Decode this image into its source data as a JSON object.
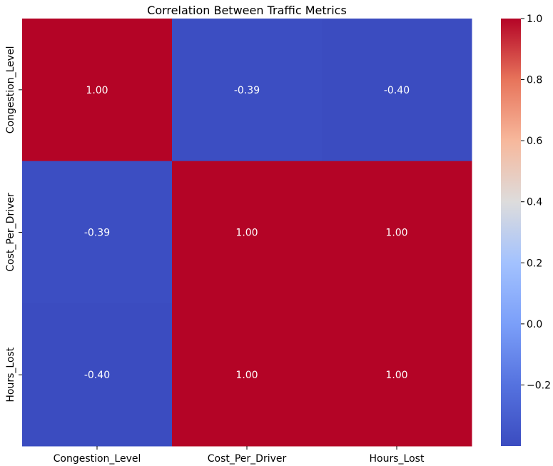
{
  "chart_data": {
    "type": "heatmap",
    "title": "Correlation Between Traffic Metrics",
    "x_categories": [
      "Congestion_Level",
      "Cost_Per_Driver",
      "Hours_Lost"
    ],
    "y_categories": [
      "Congestion_Level",
      "Cost_Per_Driver",
      "Hours_Lost"
    ],
    "matrix": [
      [
        1.0,
        -0.39,
        -0.4
      ],
      [
        -0.39,
        1.0,
        1.0
      ],
      [
        -0.4,
        1.0,
        1.0
      ]
    ],
    "annotations": [
      [
        "1.00",
        "-0.39",
        "-0.40"
      ],
      [
        "-0.39",
        "1.00",
        "1.00"
      ],
      [
        "-0.40",
        "1.00",
        "1.00"
      ]
    ],
    "colormap": "coolwarm",
    "colorbar": {
      "range": [
        -0.4,
        1.0
      ],
      "ticks": [
        1.0,
        0.8,
        0.6,
        0.4,
        0.2,
        0.0,
        -0.2
      ],
      "tick_labels": [
        "1.0",
        "0.8",
        "0.6",
        "0.4",
        "0.2",
        "0.0",
        "−0.2"
      ]
    },
    "colors": {
      "low": "#3b4cc0",
      "mid": "#dddcdc",
      "high": "#b40426",
      "annotation_text": "#ffffff"
    }
  }
}
